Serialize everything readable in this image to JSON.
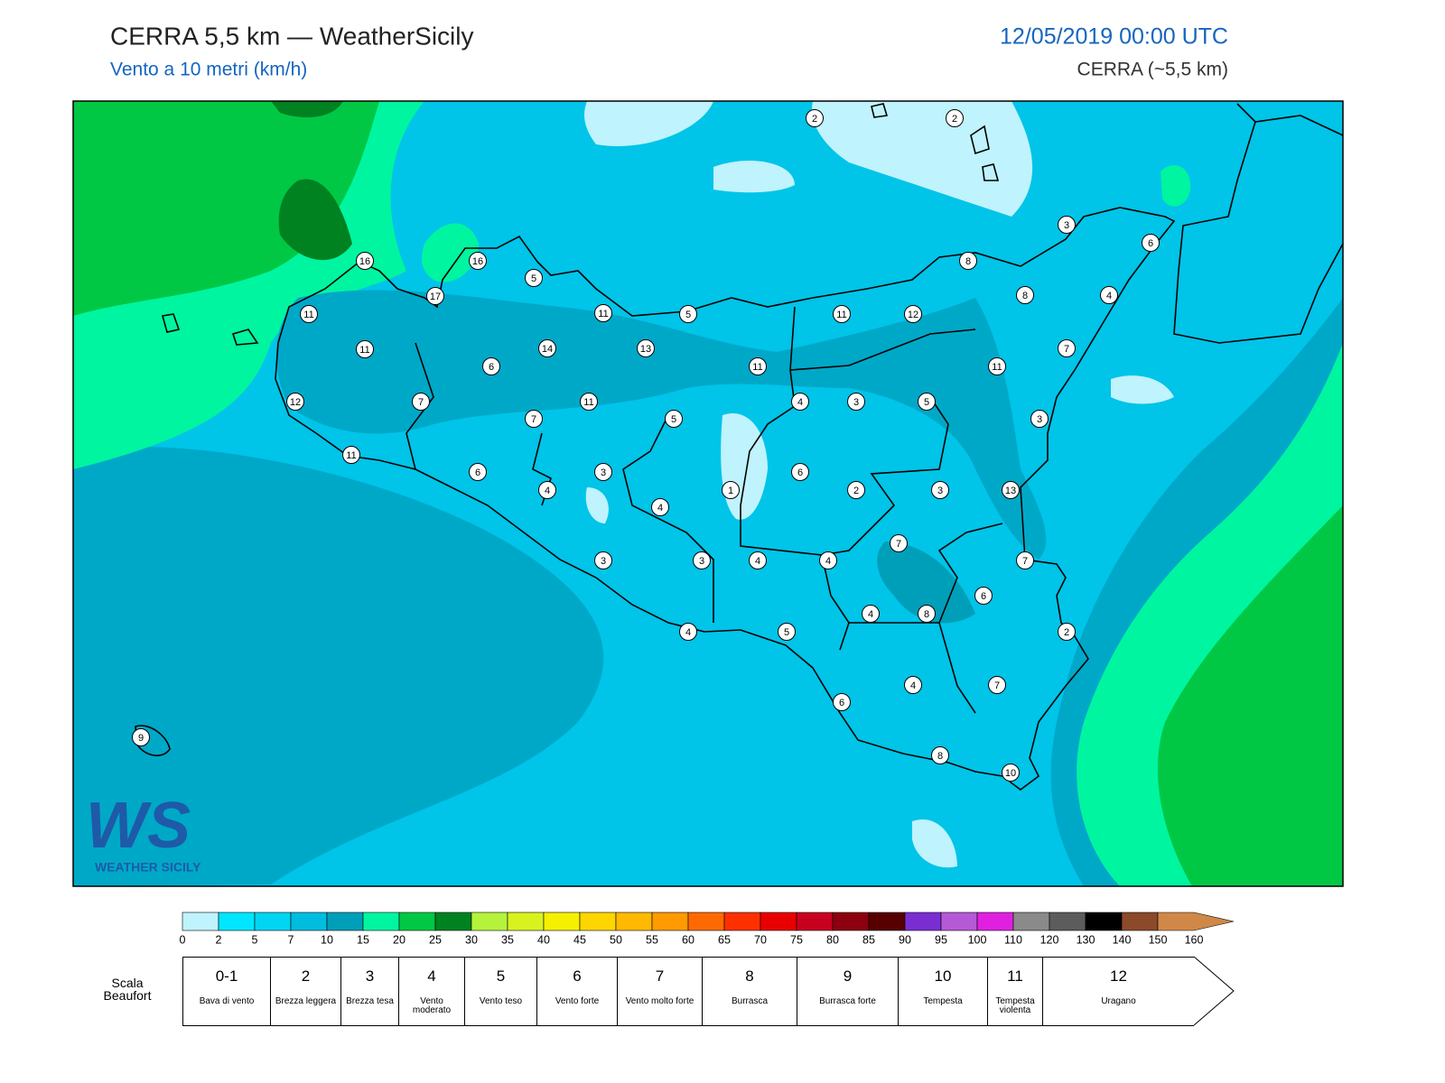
{
  "header": {
    "title": "CERRA 5,5 km — WeatherSicily",
    "subtitle": "Vento a 10 metri (km/h)",
    "date": "12/05/2019 00:00 UTC",
    "model": "CERRA (~5,5 km)"
  },
  "stations": [
    2,
    2,
    3,
    6,
    16,
    16,
    8,
    5,
    17,
    8,
    4,
    11,
    11,
    5,
    11,
    12,
    11,
    14,
    13,
    7,
    6,
    11,
    11,
    12,
    7,
    11,
    4,
    3,
    5,
    7,
    5,
    3,
    11,
    6,
    3,
    6,
    4,
    1,
    2,
    3,
    13,
    4,
    7,
    3,
    3,
    4,
    4,
    7,
    6,
    4,
    8,
    5,
    4,
    2,
    4,
    7,
    6,
    9,
    8,
    10
  ],
  "colorbar": {
    "ticks": [
      0,
      2,
      5,
      7,
      10,
      15,
      20,
      25,
      30,
      35,
      40,
      45,
      50,
      55,
      60,
      65,
      70,
      75,
      80,
      85,
      90,
      95,
      100,
      110,
      120,
      130,
      140,
      150,
      160
    ],
    "colors": [
      "#bff3fd",
      "#00e6ff",
      "#00d5f2",
      "#00bde0",
      "#009fb9",
      "#00f5a0",
      "#00c845",
      "#008220",
      "#b5f23c",
      "#d8f220",
      "#f5f000",
      "#ffd500",
      "#ffb900",
      "#ff9a00",
      "#ff6a00",
      "#ff3000",
      "#e80000",
      "#c80020",
      "#8c0010",
      "#560000",
      "#7a2ed2",
      "#b55ad6",
      "#e020e0",
      "#8a8a8a",
      "#5c5c5c",
      "#000000",
      "#8b4a2a",
      "#d08848"
    ]
  },
  "beaufort": {
    "label": "Scala Beaufort",
    "entries": [
      {
        "force": "0-1",
        "description": "Bava di vento"
      },
      {
        "force": "2",
        "description": "Brezza leggera"
      },
      {
        "force": "3",
        "description": "Brezza tesa"
      },
      {
        "force": "4",
        "description": "Vento moderato"
      },
      {
        "force": "5",
        "description": "Vento teso"
      },
      {
        "force": "6",
        "description": "Vento forte"
      },
      {
        "force": "7",
        "description": "Vento molto forte"
      },
      {
        "force": "8",
        "description": "Burrasca"
      },
      {
        "force": "9",
        "description": "Burrasca forte"
      },
      {
        "force": "10",
        "description": "Tempesta"
      },
      {
        "force": "11",
        "description": "Tempesta violenta"
      },
      {
        "force": "12",
        "description": "Uragano"
      }
    ]
  },
  "logo": {
    "mark": "WS",
    "text": "WEATHER SICILY"
  }
}
